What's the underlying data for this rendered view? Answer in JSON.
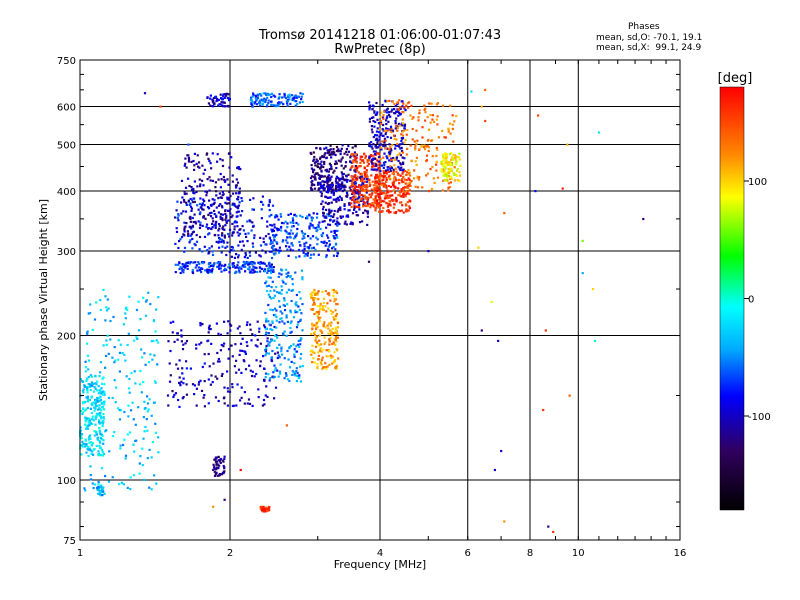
{
  "chart_data": {
    "type": "scatter",
    "title": "Tromsø 20141218 01:06:00-01:07:43",
    "subtitle": "RwPretec (8p)",
    "xlabel": "Frequency [MHz]",
    "ylabel": "Stationary phase Virtual Height [km]",
    "x_scale": "log",
    "y_scale": "log",
    "xlim": [
      1,
      16
    ],
    "ylim": [
      75,
      750
    ],
    "x_ticks": [
      "1",
      "2",
      "4",
      "6",
      "8",
      "10",
      "16"
    ],
    "y_ticks": [
      "75",
      "100",
      "200",
      "300",
      "400",
      "500",
      "600",
      "750"
    ],
    "x_ticks_values": [
      1,
      2,
      4,
      6,
      8,
      10,
      16
    ],
    "y_ticks_values": [
      75,
      100,
      200,
      300,
      400,
      500,
      600,
      750
    ],
    "grid": true,
    "colorbar": {
      "label": "[deg]",
      "range": [
        -180,
        180
      ],
      "ticks": [
        "100",
        "0",
        "-100"
      ],
      "tick_values": [
        100,
        0,
        -100
      ]
    },
    "stats": {
      "header": "Phases",
      "o_line": "mean, sd,O: -70.1, 19.1",
      "x_line": "mean, sd,X:  99.1, 24.9"
    },
    "clusters": [
      {
        "f": [
          1.0,
          1.12
        ],
        "h": [
          112,
          165
        ],
        "phase": -20
      },
      {
        "f": [
          1.02,
          1.45
        ],
        "h": [
          95,
          250
        ],
        "phase": -30
      },
      {
        "f": [
          1.08,
          1.12
        ],
        "h": [
          93,
          97
        ],
        "phase": -40
      },
      {
        "f": [
          1.5,
          2.5
        ],
        "h": [
          142,
          215
        ],
        "phase": -100
      },
      {
        "f": [
          1.55,
          2.45
        ],
        "h": [
          270,
          285
        ],
        "phase": -75
      },
      {
        "f": [
          1.55,
          2.45
        ],
        "h": [
          290,
          390
        ],
        "phase": -85
      },
      {
        "f": [
          1.6,
          2.1
        ],
        "h": [
          320,
          480
        ],
        "phase": -110
      },
      {
        "f": [
          1.8,
          2.0
        ],
        "h": [
          600,
          640
        ],
        "phase": -100
      },
      {
        "f": [
          2.2,
          2.8
        ],
        "h": [
          600,
          640
        ],
        "phase": -60
      },
      {
        "f": [
          2.35,
          2.8
        ],
        "h": [
          160,
          280
        ],
        "phase": -50
      },
      {
        "f": [
          2.4,
          3.3
        ],
        "h": [
          290,
          360
        ],
        "phase": -70
      },
      {
        "f": [
          2.9,
          3.3
        ],
        "h": [
          170,
          250
        ],
        "phase": 115
      },
      {
        "f": [
          2.9,
          3.6
        ],
        "h": [
          400,
          500
        ],
        "phase": -120
      },
      {
        "f": [
          3.0,
          3.8
        ],
        "h": [
          340,
          430
        ],
        "phase": -105
      },
      {
        "f": [
          3.5,
          4.0
        ],
        "h": [
          370,
          480
        ],
        "phase": 155
      },
      {
        "f": [
          3.9,
          4.6
        ],
        "h": [
          360,
          440
        ],
        "phase": 160
      },
      {
        "f": [
          3.8,
          4.5
        ],
        "h": [
          440,
          620
        ],
        "phase": -100
      },
      {
        "f": [
          4.0,
          5.7
        ],
        "h": [
          400,
          620
        ],
        "phase": 130
      },
      {
        "f": [
          5.3,
          5.8
        ],
        "h": [
          420,
          480
        ],
        "phase": 90
      },
      {
        "f": [
          1.85,
          1.95
        ],
        "h": [
          102,
          112
        ],
        "phase": -120
      },
      {
        "f": [
          2.3,
          2.4
        ],
        "h": [
          86,
          88
        ],
        "phase": 160
      }
    ],
    "scatter_points": [
      {
        "f": 1.35,
        "h": 640,
        "phase": -100
      },
      {
        "f": 1.45,
        "h": 600,
        "phase": 150
      },
      {
        "f": 1.65,
        "h": 500,
        "phase": -60
      },
      {
        "f": 6.5,
        "h": 560,
        "phase": 150
      },
      {
        "f": 6.4,
        "h": 600,
        "phase": 110
      },
      {
        "f": 8.3,
        "h": 575,
        "phase": 150
      },
      {
        "f": 9.5,
        "h": 500,
        "phase": 110
      },
      {
        "f": 11.0,
        "h": 530,
        "phase": -20
      },
      {
        "f": 13.5,
        "h": 350,
        "phase": -120
      },
      {
        "f": 9.3,
        "h": 405,
        "phase": 170
      },
      {
        "f": 8.2,
        "h": 400,
        "phase": -80
      },
      {
        "f": 7.1,
        "h": 360,
        "phase": 140
      },
      {
        "f": 6.3,
        "h": 305,
        "phase": 100
      },
      {
        "f": 6.7,
        "h": 235,
        "phase": 80
      },
      {
        "f": 6.4,
        "h": 205,
        "phase": -120
      },
      {
        "f": 6.9,
        "h": 195,
        "phase": -100
      },
      {
        "f": 8.6,
        "h": 205,
        "phase": 160
      },
      {
        "f": 9.6,
        "h": 150,
        "phase": 140
      },
      {
        "f": 8.5,
        "h": 140,
        "phase": 160
      },
      {
        "f": 10.8,
        "h": 195,
        "phase": 0
      },
      {
        "f": 10.7,
        "h": 250,
        "phase": 100
      },
      {
        "f": 10.2,
        "h": 270,
        "phase": -40
      },
      {
        "f": 7.1,
        "h": 82,
        "phase": 120
      },
      {
        "f": 8.7,
        "h": 80,
        "phase": -120
      },
      {
        "f": 8.9,
        "h": 78,
        "phase": 160
      },
      {
        "f": 3.8,
        "h": 285,
        "phase": -130
      },
      {
        "f": 5.0,
        "h": 300,
        "phase": -100
      },
      {
        "f": 1.85,
        "h": 88,
        "phase": 120
      },
      {
        "f": 1.95,
        "h": 91,
        "phase": -120
      },
      {
        "f": 2.1,
        "h": 105,
        "phase": 180
      },
      {
        "f": 2.6,
        "h": 130,
        "phase": 140
      },
      {
        "f": 1.4,
        "h": 120,
        "phase": 0
      },
      {
        "f": 1.2,
        "h": 140,
        "phase": -40
      },
      {
        "f": 7.0,
        "h": 115,
        "phase": -100
      },
      {
        "f": 6.8,
        "h": 105,
        "phase": -100
      },
      {
        "f": 10.2,
        "h": 315,
        "phase": 60
      },
      {
        "f": 6.5,
        "h": 650,
        "phase": 140
      },
      {
        "f": 6.1,
        "h": 645,
        "phase": -20
      }
    ]
  }
}
